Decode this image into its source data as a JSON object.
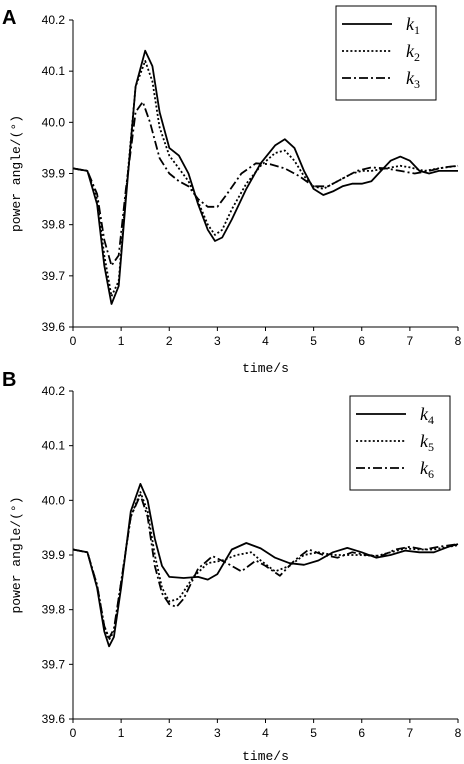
{
  "chart_data": [
    {
      "type": "line",
      "panel": "A",
      "xlabel": "time/s",
      "ylabel": "power angle/(°)",
      "xlim": [
        0,
        8
      ],
      "ylim": [
        39.6,
        40.2
      ],
      "xticks": [
        "0",
        "1",
        "2",
        "3",
        "4",
        "5",
        "6",
        "7",
        "8"
      ],
      "yticks": [
        "39.6",
        "39.7",
        "39.8",
        "39.9",
        "40.0",
        "40.1",
        "40.2"
      ],
      "legend_position": "top-right",
      "series": [
        {
          "name": "k1",
          "base": "k",
          "sub": "1",
          "dash": "solid",
          "points": [
            [
              0,
              39.91
            ],
            [
              0.3,
              39.905
            ],
            [
              0.5,
              39.84
            ],
            [
              0.65,
              39.72
            ],
            [
              0.8,
              39.645
            ],
            [
              0.95,
              39.68
            ],
            [
              1.1,
              39.85
            ],
            [
              1.3,
              40.07
            ],
            [
              1.5,
              40.14
            ],
            [
              1.65,
              40.11
            ],
            [
              1.8,
              40.02
            ],
            [
              2.0,
              39.95
            ],
            [
              2.2,
              39.935
            ],
            [
              2.4,
              39.9
            ],
            [
              2.6,
              39.84
            ],
            [
              2.8,
              39.79
            ],
            [
              2.95,
              39.768
            ],
            [
              3.1,
              39.775
            ],
            [
              3.3,
              39.81
            ],
            [
              3.6,
              39.87
            ],
            [
              3.9,
              39.92
            ],
            [
              4.2,
              39.955
            ],
            [
              4.4,
              39.967
            ],
            [
              4.6,
              39.95
            ],
            [
              4.8,
              39.905
            ],
            [
              5.0,
              39.87
            ],
            [
              5.2,
              39.858
            ],
            [
              5.4,
              39.865
            ],
            [
              5.6,
              39.875
            ],
            [
              5.8,
              39.88
            ],
            [
              6.0,
              39.88
            ],
            [
              6.2,
              39.885
            ],
            [
              6.4,
              39.905
            ],
            [
              6.6,
              39.925
            ],
            [
              6.8,
              39.933
            ],
            [
              7.0,
              39.925
            ],
            [
              7.2,
              39.905
            ],
            [
              7.4,
              39.9
            ],
            [
              7.6,
              39.905
            ],
            [
              8.0,
              39.905
            ]
          ]
        },
        {
          "name": "k2",
          "base": "k",
          "sub": "2",
          "dash": "dot",
          "points": [
            [
              0,
              39.91
            ],
            [
              0.3,
              39.905
            ],
            [
              0.5,
              39.85
            ],
            [
              0.65,
              39.74
            ],
            [
              0.8,
              39.66
            ],
            [
              0.95,
              39.69
            ],
            [
              1.1,
              39.86
            ],
            [
              1.3,
              40.07
            ],
            [
              1.5,
              40.12
            ],
            [
              1.65,
              40.08
            ],
            [
              1.8,
              39.99
            ],
            [
              2.0,
              39.935
            ],
            [
              2.2,
              39.91
            ],
            [
              2.4,
              39.885
            ],
            [
              2.6,
              39.845
            ],
            [
              2.8,
              39.8
            ],
            [
              2.95,
              39.78
            ],
            [
              3.1,
              39.79
            ],
            [
              3.3,
              39.83
            ],
            [
              3.6,
              39.88
            ],
            [
              3.9,
              39.915
            ],
            [
              4.2,
              39.94
            ],
            [
              4.4,
              39.945
            ],
            [
              4.6,
              39.925
            ],
            [
              4.8,
              39.895
            ],
            [
              5.0,
              39.875
            ],
            [
              5.2,
              39.87
            ],
            [
              5.4,
              39.88
            ],
            [
              5.6,
              39.89
            ],
            [
              5.8,
              39.9
            ],
            [
              6.0,
              39.905
            ],
            [
              6.2,
              39.905
            ],
            [
              6.5,
              39.91
            ],
            [
              6.8,
              39.915
            ],
            [
              7.0,
              39.912
            ],
            [
              7.3,
              39.905
            ],
            [
              7.6,
              39.91
            ],
            [
              8.0,
              39.915
            ]
          ]
        },
        {
          "name": "k3",
          "base": "k",
          "sub": "3",
          "dash": "dashdot",
          "points": [
            [
              0,
              39.91
            ],
            [
              0.3,
              39.905
            ],
            [
              0.5,
              39.86
            ],
            [
              0.65,
              39.77
            ],
            [
              0.8,
              39.72
            ],
            [
              0.95,
              39.74
            ],
            [
              1.1,
              39.87
            ],
            [
              1.3,
              40.02
            ],
            [
              1.45,
              40.04
            ],
            [
              1.6,
              40.0
            ],
            [
              1.8,
              39.93
            ],
            [
              2.0,
              39.9
            ],
            [
              2.2,
              39.885
            ],
            [
              2.4,
              39.875
            ],
            [
              2.6,
              39.85
            ],
            [
              2.8,
              39.835
            ],
            [
              3.0,
              39.835
            ],
            [
              3.2,
              39.86
            ],
            [
              3.5,
              39.9
            ],
            [
              3.8,
              39.92
            ],
            [
              4.1,
              39.918
            ],
            [
              4.4,
              39.91
            ],
            [
              4.7,
              39.895
            ],
            [
              5.0,
              39.875
            ],
            [
              5.3,
              39.875
            ],
            [
              5.6,
              39.89
            ],
            [
              5.9,
              39.905
            ],
            [
              6.2,
              39.912
            ],
            [
              6.5,
              39.91
            ],
            [
              6.8,
              39.905
            ],
            [
              7.1,
              39.9
            ],
            [
              7.4,
              39.905
            ],
            [
              7.7,
              39.912
            ],
            [
              8.0,
              39.915
            ]
          ]
        }
      ]
    },
    {
      "type": "line",
      "panel": "B",
      "xlabel": "time/s",
      "ylabel": "power angle/(°)",
      "xlim": [
        0,
        8
      ],
      "ylim": [
        39.6,
        40.2
      ],
      "xticks": [
        "0",
        "1",
        "2",
        "3",
        "4",
        "5",
        "6",
        "7",
        "8"
      ],
      "yticks": [
        "39.6",
        "39.7",
        "39.8",
        "39.9",
        "40.0",
        "40.1",
        "40.2"
      ],
      "legend_position": "top-right",
      "series": [
        {
          "name": "k4",
          "base": "k",
          "sub": "4",
          "dash": "solid",
          "points": [
            [
              0,
              39.91
            ],
            [
              0.3,
              39.905
            ],
            [
              0.5,
              39.84
            ],
            [
              0.65,
              39.76
            ],
            [
              0.75,
              39.733
            ],
            [
              0.85,
              39.75
            ],
            [
              1.0,
              39.84
            ],
            [
              1.2,
              39.98
            ],
            [
              1.4,
              40.03
            ],
            [
              1.55,
              40.0
            ],
            [
              1.7,
              39.93
            ],
            [
              1.85,
              39.88
            ],
            [
              2.0,
              39.86
            ],
            [
              2.3,
              39.858
            ],
            [
              2.6,
              39.86
            ],
            [
              2.8,
              39.855
            ],
            [
              3.0,
              39.865
            ],
            [
              3.3,
              39.91
            ],
            [
              3.6,
              39.922
            ],
            [
              3.9,
              39.912
            ],
            [
              4.2,
              39.895
            ],
            [
              4.5,
              39.885
            ],
            [
              4.8,
              39.882
            ],
            [
              5.1,
              39.89
            ],
            [
              5.4,
              39.905
            ],
            [
              5.7,
              39.913
            ],
            [
              6.0,
              39.905
            ],
            [
              6.3,
              39.895
            ],
            [
              6.6,
              39.9
            ],
            [
              6.9,
              39.908
            ],
            [
              7.2,
              39.905
            ],
            [
              7.5,
              39.905
            ],
            [
              7.8,
              39.915
            ],
            [
              8.0,
              39.92
            ]
          ]
        },
        {
          "name": "k5",
          "base": "k",
          "sub": "5",
          "dash": "dot",
          "points": [
            [
              0,
              39.91
            ],
            [
              0.3,
              39.905
            ],
            [
              0.5,
              39.845
            ],
            [
              0.65,
              39.77
            ],
            [
              0.75,
              39.745
            ],
            [
              0.85,
              39.76
            ],
            [
              1.0,
              39.85
            ],
            [
              1.2,
              39.97
            ],
            [
              1.4,
              40.015
            ],
            [
              1.55,
              39.98
            ],
            [
              1.7,
              39.9
            ],
            [
              1.85,
              39.84
            ],
            [
              2.0,
              39.815
            ],
            [
              2.2,
              39.82
            ],
            [
              2.5,
              39.86
            ],
            [
              2.8,
              39.885
            ],
            [
              3.1,
              39.89
            ],
            [
              3.4,
              39.9
            ],
            [
              3.7,
              39.905
            ],
            [
              3.9,
              39.89
            ],
            [
              4.2,
              39.87
            ],
            [
              4.5,
              39.88
            ],
            [
              4.8,
              39.9
            ],
            [
              5.1,
              39.905
            ],
            [
              5.4,
              39.9
            ],
            [
              5.7,
              39.9
            ],
            [
              6.0,
              39.9
            ],
            [
              6.3,
              39.898
            ],
            [
              6.6,
              39.905
            ],
            [
              6.9,
              39.912
            ],
            [
              7.2,
              39.91
            ],
            [
              7.5,
              39.91
            ],
            [
              7.8,
              39.915
            ],
            [
              8.0,
              39.918
            ]
          ]
        },
        {
          "name": "k6",
          "base": "k",
          "sub": "6",
          "dash": "dashdot",
          "points": [
            [
              0,
              39.91
            ],
            [
              0.3,
              39.905
            ],
            [
              0.5,
              39.845
            ],
            [
              0.65,
              39.77
            ],
            [
              0.75,
              39.748
            ],
            [
              0.85,
              39.765
            ],
            [
              1.0,
              39.85
            ],
            [
              1.2,
              39.97
            ],
            [
              1.4,
              40.01
            ],
            [
              1.55,
              39.97
            ],
            [
              1.7,
              39.88
            ],
            [
              1.85,
              39.83
            ],
            [
              2.0,
              39.81
            ],
            [
              2.15,
              39.805
            ],
            [
              2.3,
              39.82
            ],
            [
              2.6,
              39.875
            ],
            [
              2.9,
              39.898
            ],
            [
              3.2,
              39.885
            ],
            [
              3.5,
              39.87
            ],
            [
              3.8,
              39.89
            ],
            [
              4.0,
              39.88
            ],
            [
              4.3,
              39.862
            ],
            [
              4.6,
              39.89
            ],
            [
              4.9,
              39.91
            ],
            [
              5.2,
              39.9
            ],
            [
              5.5,
              39.895
            ],
            [
              5.8,
              39.905
            ],
            [
              6.1,
              39.9
            ],
            [
              6.4,
              39.898
            ],
            [
              6.7,
              39.91
            ],
            [
              7.0,
              39.915
            ],
            [
              7.3,
              39.91
            ],
            [
              7.6,
              39.915
            ],
            [
              8.0,
              39.92
            ]
          ]
        }
      ]
    }
  ]
}
